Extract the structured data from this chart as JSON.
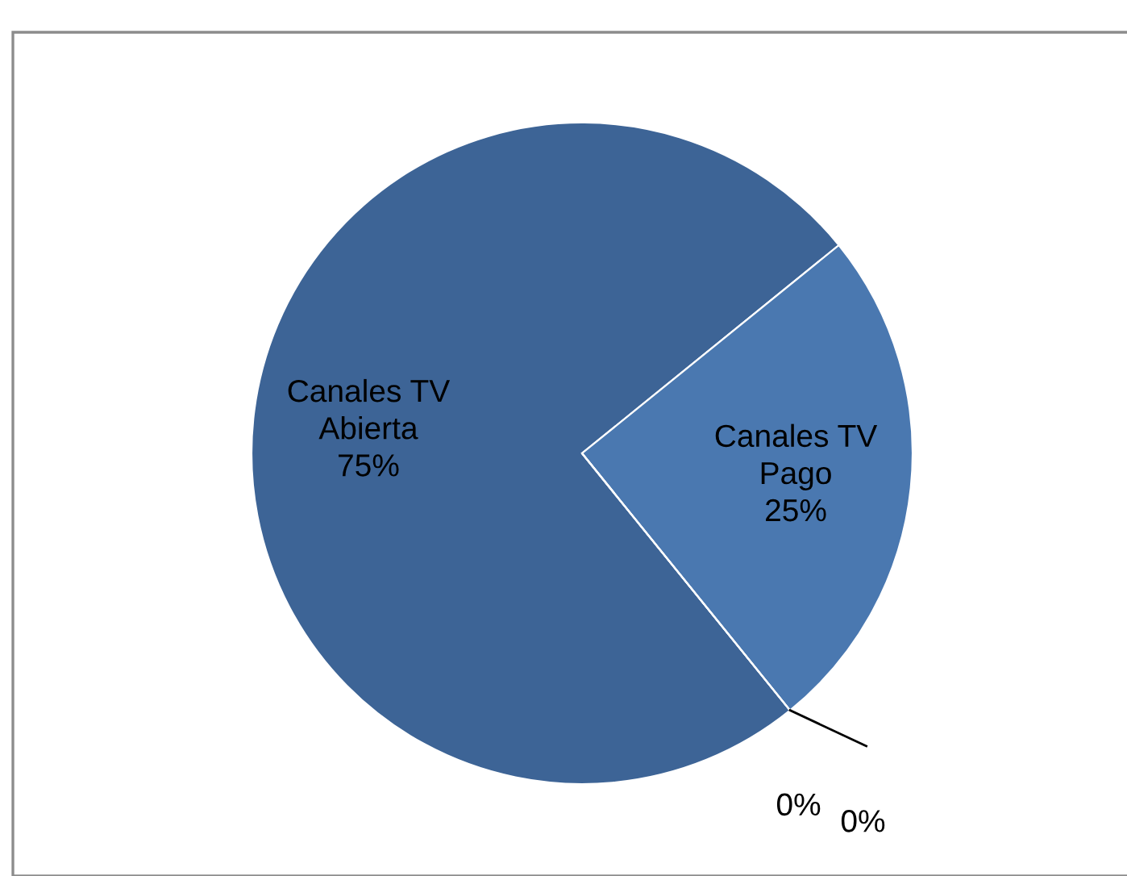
{
  "chart_data": {
    "type": "pie",
    "categories": [
      "Canales TV Abierta",
      "Canales TV Pago",
      null,
      null
    ],
    "values": [
      75,
      25,
      0,
      0
    ],
    "colors": [
      "#3d6496",
      "#4a78b0",
      "#3d6496",
      "#4a78b0"
    ],
    "value_labels": [
      "75%",
      "25%",
      "0%",
      "0%"
    ],
    "legend": false
  }
}
